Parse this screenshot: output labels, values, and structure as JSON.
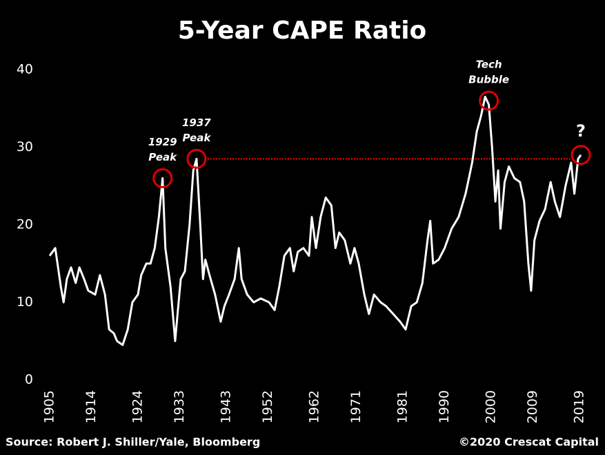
{
  "chart_data": {
    "type": "line",
    "title": "5-Year CAPE Ratio",
    "source": "Source: Robert J. Shiller/Yale, Bloomberg",
    "copyright": "©2020 Crescat Capital",
    "x": [
      1905,
      1906.2,
      1907.4,
      1908,
      1908.7,
      1909.6,
      1910.6,
      1911.4,
      1912.4,
      1913.3,
      1914.8,
      1915.8,
      1916.9,
      1917.8,
      1918.8,
      1919.5,
      1920.7,
      1921.8,
      1922.8,
      1924,
      1924.7,
      1925.8,
      1926.7,
      1927.6,
      1928.5,
      1929.3,
      1929.9,
      1931,
      1932,
      1932.6,
      1933.2,
      1934.1,
      1935.1,
      1935.9,
      1936.6,
      1937.4,
      1938,
      1938.5,
      1939.4,
      1940.6,
      1941.8,
      1942.6,
      1943.6,
      1944.8,
      1945.7,
      1946.3,
      1947.5,
      1948.9,
      1950.4,
      1952.2,
      1953.4,
      1954.4,
      1955.5,
      1956.7,
      1957.5,
      1958.4,
      1959.6,
      1960.8,
      1961.4,
      1962.3,
      1963.3,
      1964.4,
      1965.6,
      1966.5,
      1967.3,
      1968.5,
      1969.7,
      1970.6,
      1971.5,
      1972.7,
      1973.7,
      1974.8,
      1976.2,
      1977.4,
      1978.9,
      1980.4,
      1981.6,
      1982.8,
      1984,
      1985.2,
      1986.3,
      1986.9,
      1987.5,
      1988.7,
      1990,
      1991.5,
      1993,
      1994.5,
      1995.2,
      1995.9,
      1996.9,
      1997.8,
      1998.7,
      1999.5,
      2000.2,
      2000.9,
      2001.5,
      2002,
      2002.9,
      2003.8,
      2005,
      2006.2,
      2007.1,
      2008,
      2008.6,
      2009.3,
      2010.4,
      2011.6,
      2012.8,
      2013.7,
      2014.8,
      2016,
      2017.2,
      2017.9,
      2018.7,
      2019.3
    ],
    "values": [
      16,
      17,
      12,
      10,
      13,
      14.5,
      12.5,
      14.5,
      13,
      11.5,
      11,
      13.5,
      11,
      6.5,
      6,
      5,
      4.5,
      6.5,
      10,
      11,
      13.5,
      15,
      15,
      17,
      21,
      26,
      17,
      12,
      5,
      9,
      13,
      14,
      20,
      27,
      28.5,
      20,
      13,
      15.5,
      13.5,
      11,
      7.5,
      9.5,
      11,
      13,
      17,
      13,
      11,
      10,
      10.5,
      10,
      9,
      12,
      16,
      17,
      14,
      16.5,
      17,
      16,
      21,
      17,
      21,
      23.5,
      22.5,
      17,
      19,
      18,
      15,
      17,
      15,
      11,
      8.5,
      11,
      10,
      9.5,
      8.5,
      7.5,
      6.5,
      9.5,
      10,
      12.5,
      18,
      20.5,
      15,
      15.5,
      17,
      19.5,
      21,
      24,
      26,
      28,
      32,
      34,
      36.5,
      35.5,
      30,
      23,
      27,
      19.5,
      25.5,
      27.5,
      26,
      25.5,
      23,
      15,
      11.5,
      18,
      20.5,
      22,
      25.5,
      23,
      21,
      25,
      28,
      24,
      28.5,
      29
    ],
    "color": "#ffffff",
    "xlim": [
      1905,
      2019
    ],
    "xticks": [
      1905,
      1914,
      1924,
      1933,
      1943,
      1952,
      1962,
      1971,
      1981,
      1990,
      2000,
      2009,
      2019
    ],
    "ylim": [
      0,
      40
    ],
    "yticks": [
      0,
      10,
      20,
      30,
      40
    ],
    "grid": false,
    "annotations": [
      {
        "lines": [
          "1929",
          "Peak"
        ],
        "x": 1929.3,
        "y": 26
      },
      {
        "lines": [
          "1937",
          "Peak"
        ],
        "x": 1936.6,
        "y": 28.5
      },
      {
        "lines": [
          "Tech",
          "Bubble"
        ],
        "x": 1999.5,
        "y": 36
      },
      {
        "lines": [
          "?"
        ],
        "x": 2019.3,
        "y": 29
      }
    ],
    "marker_color": "#e00000",
    "hline": {
      "value": 28.5,
      "color": "#e00000"
    }
  }
}
